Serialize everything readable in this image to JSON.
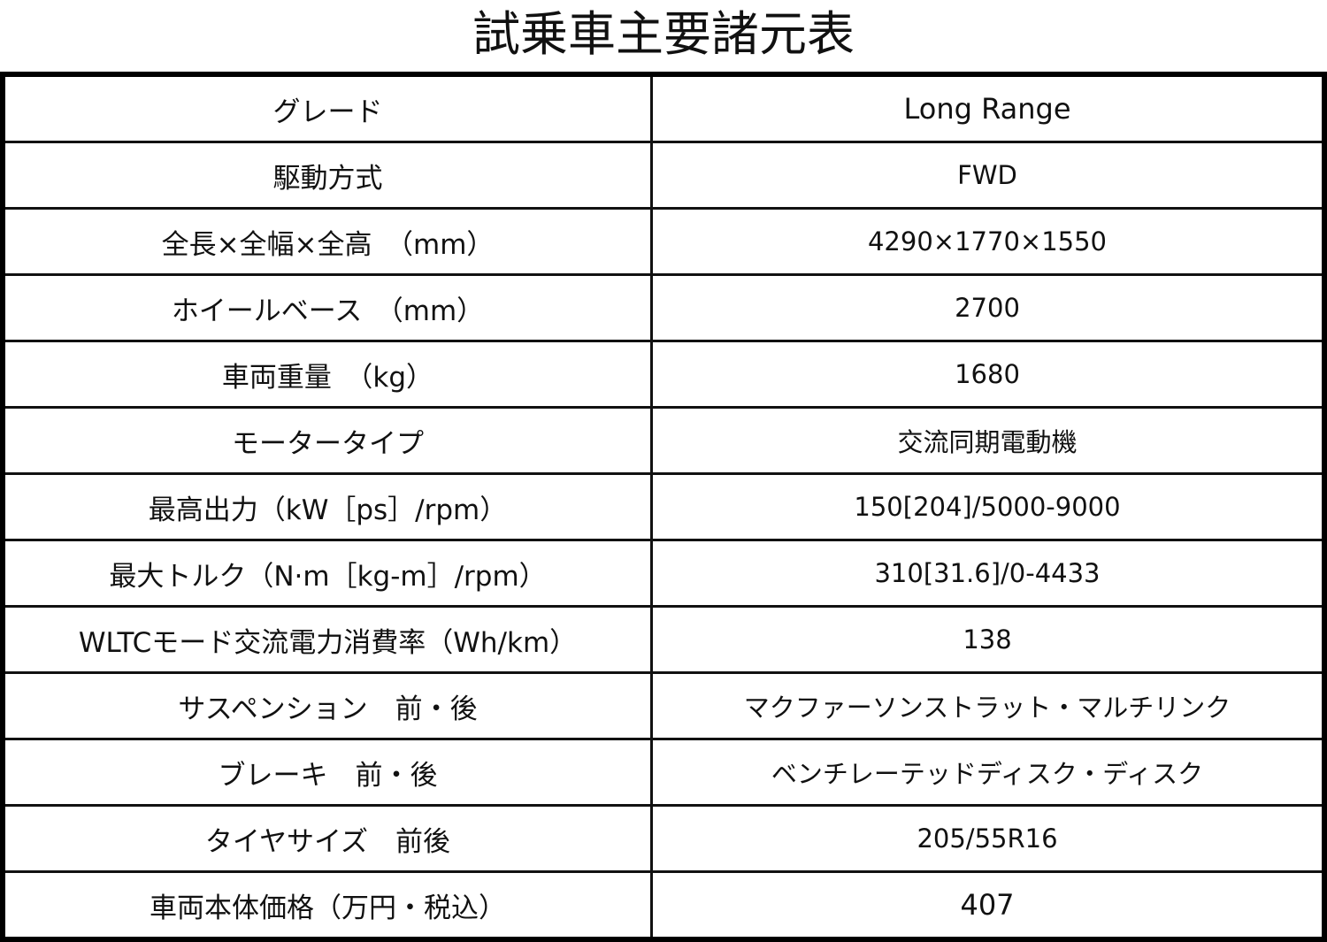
{
  "title": "試乗車主要諸元表",
  "rows": [
    {
      "label": "グレード",
      "value": "Long Range"
    },
    {
      "label": "駆動方式",
      "value": "FWD"
    },
    {
      "label": "全長×全幅×全高　（mm）",
      "value": "4290×1770×1550"
    },
    {
      "label": "ホイールベース　（mm）",
      "value": "2700"
    },
    {
      "label": "車両重量　（kg）",
      "value": "1680"
    },
    {
      "label": "モータータイプ",
      "value": "交流同期電動機"
    },
    {
      "label": "最高出力（kW［ps］/rpm）",
      "value": "150[204]/5000-9000"
    },
    {
      "label": "最大トルク（N·m［kg-m］/rpm）",
      "value": "310[31.6]/0-4433"
    },
    {
      "label": "WLTCモード交流電力消費率（Wh/km）",
      "value": "138"
    },
    {
      "label": "サスペンション　前・後",
      "value": "マクファーソンストラット・マルチリンク"
    },
    {
      "label": "ブレーキ　前・後",
      "value": "ベンチレーテッドディスク・ディスク"
    },
    {
      "label": "タイヤサイズ　前後",
      "value": "205/55R16"
    },
    {
      "label": "車両本体価格（万円・税込）",
      "value": "407"
    }
  ]
}
